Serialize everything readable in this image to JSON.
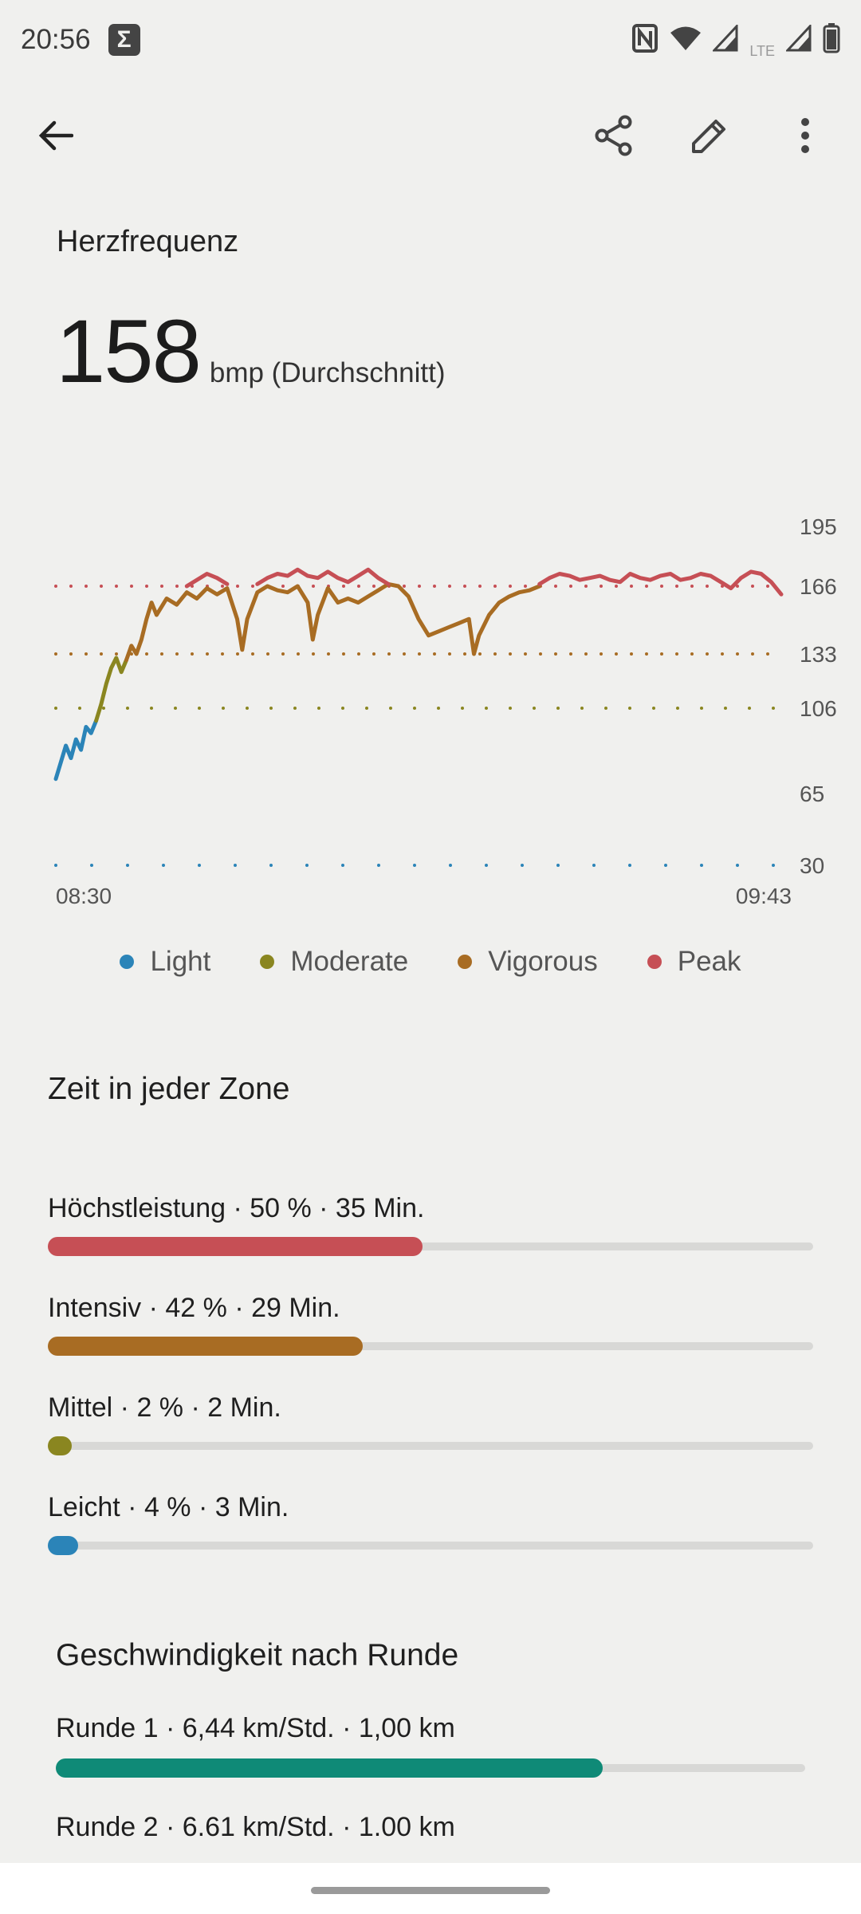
{
  "status_bar": {
    "time": "20:56",
    "notification_icon": "sigma-icon",
    "network_label": "LTE",
    "icons": [
      "nfc-icon",
      "wifi-icon",
      "signal-icon",
      "signal-lte-icon",
      "battery-icon"
    ]
  },
  "toolbar": {
    "back_icon": "arrow-back-icon",
    "share_icon": "share-icon",
    "edit_icon": "edit-pencil-icon",
    "more_icon": "more-vert-icon"
  },
  "heart_rate": {
    "title": "Herzfrequenz",
    "value": "158",
    "unit": "bmp (Durchschnitt)"
  },
  "chart_data": {
    "type": "line",
    "x_labels": [
      "08:30",
      "09:43"
    ],
    "y_ticks": [
      195,
      166,
      133,
      106,
      65,
      30
    ],
    "ylim": [
      30,
      195
    ],
    "zone_thresholds": [
      {
        "zone": "Peak",
        "value": 166,
        "color": "#c64f55"
      },
      {
        "zone": "Vigorous",
        "value": 133,
        "color": "#a86c23"
      },
      {
        "zone": "Moderate",
        "value": 106,
        "color": "#8a8620"
      },
      {
        "zone": "Light",
        "value": 30,
        "color": "#2b84b8"
      }
    ],
    "series": [
      {
        "zone": "Light",
        "color": "#2b84b8",
        "points": [
          [
            0,
            72
          ],
          [
            0.5,
            80
          ],
          [
            1,
            88
          ],
          [
            1.5,
            82
          ],
          [
            2,
            91
          ],
          [
            2.5,
            86
          ],
          [
            3,
            97
          ],
          [
            3.5,
            94
          ],
          [
            4,
            100
          ]
        ]
      },
      {
        "zone": "Moderate",
        "color": "#8a8620",
        "points": [
          [
            4,
            100
          ],
          [
            4.5,
            108
          ],
          [
            5,
            118
          ],
          [
            5.5,
            126
          ],
          [
            6,
            131
          ],
          [
            6.5,
            124
          ],
          [
            7,
            130
          ]
        ]
      },
      {
        "zone": "Vigorous",
        "color": "#a86c23",
        "points": [
          [
            7,
            130
          ],
          [
            7.5,
            137
          ],
          [
            8,
            133
          ],
          [
            8.5,
            140
          ],
          [
            9,
            150
          ],
          [
            9.5,
            158
          ],
          [
            10,
            152
          ],
          [
            11,
            160
          ],
          [
            12,
            157
          ],
          [
            13,
            163
          ],
          [
            14,
            160
          ],
          [
            15,
            165
          ],
          [
            16,
            162
          ],
          [
            17,
            165
          ],
          [
            18,
            150
          ],
          [
            18.5,
            135
          ],
          [
            19,
            150
          ],
          [
            20,
            163
          ],
          [
            21,
            166
          ],
          [
            22,
            164
          ],
          [
            23,
            163
          ],
          [
            24,
            166
          ],
          [
            25,
            158
          ],
          [
            25.5,
            140
          ],
          [
            26,
            152
          ],
          [
            27,
            165
          ],
          [
            28,
            158
          ],
          [
            29,
            160
          ],
          [
            30,
            158
          ],
          [
            31,
            161
          ],
          [
            32,
            164
          ],
          [
            33,
            167
          ],
          [
            34,
            166
          ],
          [
            35,
            161
          ],
          [
            36,
            150
          ],
          [
            37,
            142
          ],
          [
            38,
            144
          ],
          [
            39,
            146
          ],
          [
            40,
            148
          ],
          [
            41,
            150
          ],
          [
            41.5,
            133
          ],
          [
            42,
            142
          ],
          [
            43,
            152
          ],
          [
            44,
            158
          ],
          [
            45,
            161
          ],
          [
            46,
            163
          ],
          [
            47,
            164
          ],
          [
            48,
            166
          ]
        ]
      },
      {
        "zone": "Peak",
        "color": "#c64f55",
        "points": [
          [
            13,
            166
          ],
          [
            14,
            169
          ],
          [
            15,
            172
          ],
          [
            16,
            170
          ],
          [
            17,
            167
          ],
          [
            20,
            167
          ],
          [
            21,
            170
          ],
          [
            22,
            172
          ],
          [
            23,
            171
          ],
          [
            24,
            174
          ],
          [
            25,
            171
          ],
          [
            26,
            170
          ],
          [
            27,
            173
          ],
          [
            28,
            170
          ],
          [
            29,
            168
          ],
          [
            30,
            171
          ],
          [
            31,
            174
          ],
          [
            32,
            170
          ],
          [
            33,
            167
          ],
          [
            48,
            167
          ],
          [
            49,
            170
          ],
          [
            50,
            172
          ],
          [
            51,
            171
          ],
          [
            52,
            169
          ],
          [
            53,
            170
          ],
          [
            54,
            171
          ],
          [
            55,
            169
          ],
          [
            56,
            168
          ],
          [
            57,
            172
          ],
          [
            58,
            170
          ],
          [
            59,
            169
          ],
          [
            60,
            171
          ],
          [
            61,
            172
          ],
          [
            62,
            169
          ],
          [
            63,
            170
          ],
          [
            64,
            172
          ],
          [
            65,
            171
          ],
          [
            66,
            168
          ],
          [
            67,
            165
          ],
          [
            68,
            170
          ],
          [
            69,
            173
          ],
          [
            70,
            172
          ],
          [
            71,
            168
          ],
          [
            72,
            162
          ]
        ]
      }
    ]
  },
  "legend": [
    {
      "label": "Light",
      "color": "#2b84b8"
    },
    {
      "label": "Moderate",
      "color": "#8a8620"
    },
    {
      "label": "Vigorous",
      "color": "#a86c23"
    },
    {
      "label": "Peak",
      "color": "#c64f55"
    }
  ],
  "zones_section": {
    "title": "Zeit in jeder Zone",
    "zones": [
      {
        "label": "Höchstleistung · 50 % · 35 Min.",
        "fraction": 0.5,
        "color": "#c64f55"
      },
      {
        "label": "Intensiv · 42 % · 29 Min.",
        "fraction": 0.42,
        "color": "#a86c23"
      },
      {
        "label": "Mittel · 2 % · 2 Min.",
        "fraction": 0.02,
        "color": "#8a8620"
      },
      {
        "label": "Leicht · 4 % · 3 Min.",
        "fraction": 0.04,
        "color": "#2b84b8"
      }
    ]
  },
  "laps_section": {
    "title": "Geschwindigkeit nach Runde",
    "laps": [
      {
        "label": "Runde 1 · 6,44 km/Std. · 1,00 km",
        "fraction": 0.73,
        "color": "#0f8a77"
      },
      {
        "label": "Runde 2 · 6.61 km/Std. · 1.00 km"
      }
    ]
  }
}
